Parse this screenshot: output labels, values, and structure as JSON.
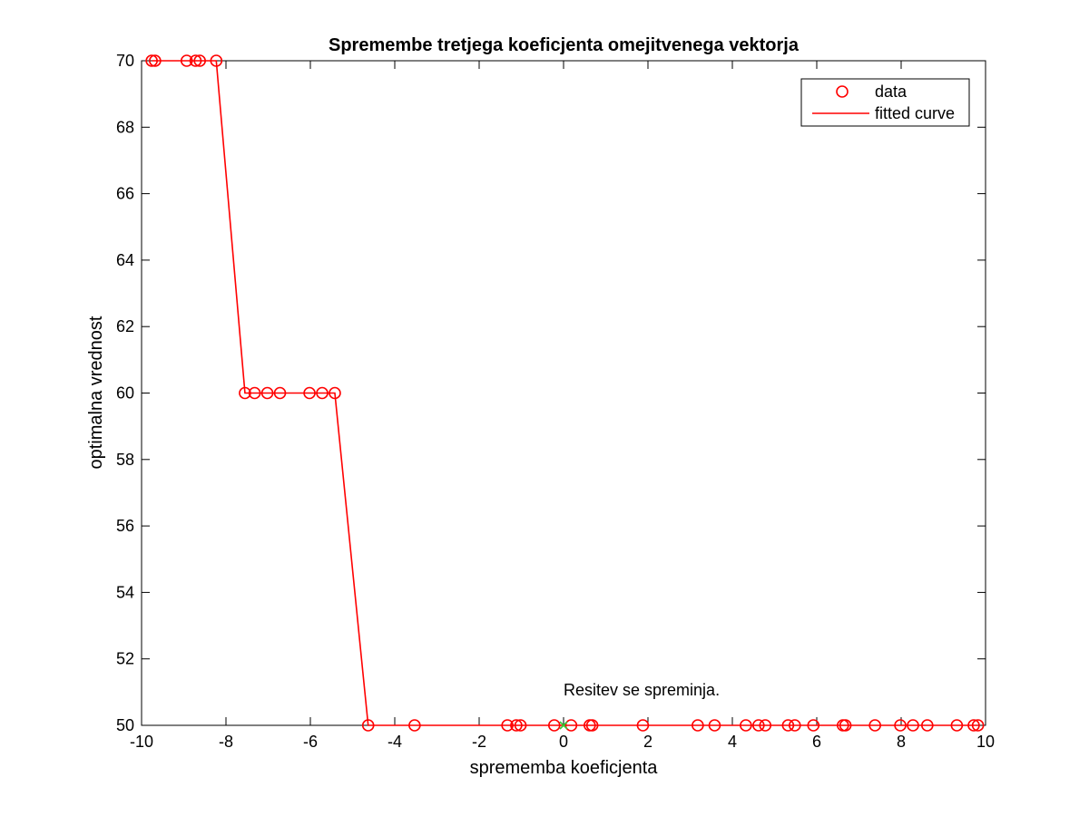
{
  "chart_data": {
    "type": "scatter",
    "title": "Spremembe tretjega koeficjenta omejitvenega vektorja",
    "xlabel": "sprememba koeficjenta",
    "ylabel": "optimalna vrednost",
    "xlim": [
      -10,
      10
    ],
    "ylim": [
      50,
      70
    ],
    "xticks": [
      -10,
      -8,
      -6,
      -4,
      -2,
      0,
      2,
      4,
      6,
      8,
      10
    ],
    "yticks": [
      50,
      52,
      54,
      56,
      58,
      60,
      62,
      64,
      66,
      68,
      70
    ],
    "grid": false,
    "legend_position": "top-right",
    "series": [
      {
        "name": "data",
        "kind": "scatter",
        "marker": "circle",
        "color": "#ff0000",
        "points": [
          [
            -9.76,
            70
          ],
          [
            -9.68,
            70
          ],
          [
            -8.93,
            70
          ],
          [
            -8.72,
            70
          ],
          [
            -8.62,
            70
          ],
          [
            -8.23,
            70
          ],
          [
            -7.55,
            60
          ],
          [
            -7.32,
            60
          ],
          [
            -7.02,
            60
          ],
          [
            -6.72,
            60
          ],
          [
            -6.02,
            60
          ],
          [
            -5.72,
            60
          ],
          [
            -5.42,
            60
          ],
          [
            -4.63,
            50
          ],
          [
            -3.53,
            50
          ],
          [
            -1.33,
            50
          ],
          [
            -1.12,
            50
          ],
          [
            -1.02,
            50
          ],
          [
            -0.22,
            50
          ],
          [
            0.18,
            50
          ],
          [
            0.62,
            50
          ],
          [
            0.68,
            50
          ],
          [
            1.88,
            50
          ],
          [
            3.18,
            50
          ],
          [
            3.58,
            50
          ],
          [
            4.32,
            50
          ],
          [
            4.62,
            50
          ],
          [
            4.78,
            50
          ],
          [
            5.32,
            50
          ],
          [
            5.48,
            50
          ],
          [
            5.92,
            50
          ],
          [
            6.62,
            50
          ],
          [
            6.68,
            50
          ],
          [
            7.38,
            50
          ],
          [
            7.98,
            50
          ],
          [
            8.28,
            50
          ],
          [
            8.62,
            50
          ],
          [
            9.32,
            50
          ],
          [
            9.72,
            50
          ],
          [
            9.82,
            50
          ]
        ]
      },
      {
        "name": "fitted curve",
        "kind": "line",
        "color": "#ff0000",
        "points": [
          [
            -9.76,
            70
          ],
          [
            -8.23,
            70
          ],
          [
            -7.55,
            60
          ],
          [
            -5.42,
            60
          ],
          [
            -4.63,
            50
          ],
          [
            9.82,
            50
          ]
        ]
      }
    ],
    "highlight_point": {
      "x": 0,
      "y": 50,
      "marker": "x",
      "color": "#33cc33"
    },
    "annotation": {
      "text": "Resitev se spreminja.",
      "x": 0,
      "y": 50.9
    }
  }
}
